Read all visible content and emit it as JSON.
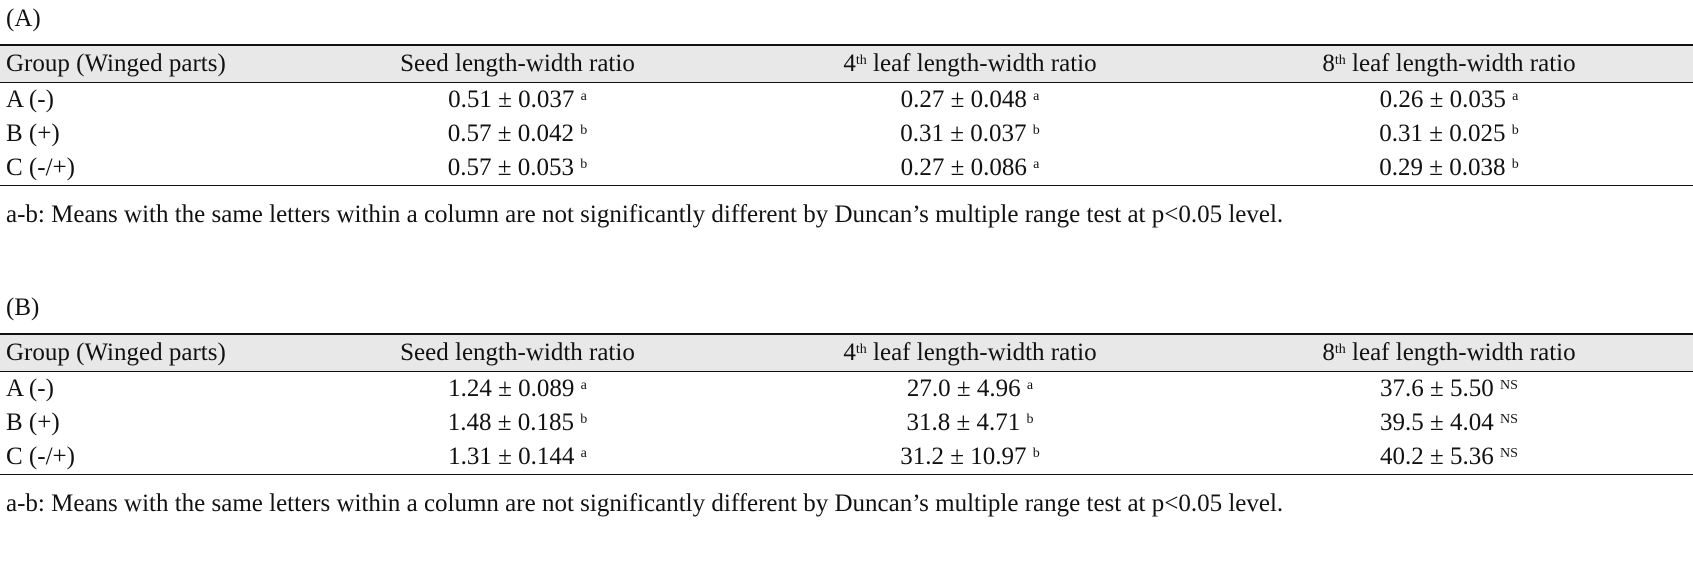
{
  "tables": [
    {
      "label": "(A)",
      "headers": [
        {
          "base": "Group (Winged parts)",
          "sup": "",
          "tail": ""
        },
        {
          "base": "Seed length-width ratio",
          "sup": "",
          "tail": ""
        },
        {
          "base": "4",
          "sup": "th",
          "tail": " leaf length-width ratio"
        },
        {
          "base": "8",
          "sup": "th",
          "tail": " leaf length-width ratio"
        }
      ],
      "rows": [
        {
          "group": "A (-)",
          "cells": [
            {
              "value": "0.51 ± 0.037",
              "sup": "a"
            },
            {
              "value": "0.27 ± 0.048",
              "sup": "a"
            },
            {
              "value": "0.26 ± 0.035",
              "sup": "a"
            }
          ]
        },
        {
          "group": "B (+)",
          "cells": [
            {
              "value": "0.57 ± 0.042",
              "sup": "b"
            },
            {
              "value": "0.31 ± 0.037",
              "sup": "b"
            },
            {
              "value": "0.31 ± 0.025",
              "sup": "b"
            }
          ]
        },
        {
          "group": "C (-/+)",
          "cells": [
            {
              "value": "0.57 ± 0.053",
              "sup": "b"
            },
            {
              "value": "0.27 ± 0.086",
              "sup": "a"
            },
            {
              "value": "0.29 ± 0.038",
              "sup": "b"
            }
          ]
        }
      ],
      "note": "a-b: Means with the same letters within a column are not significantly different by Duncan’s multiple range test at p<0.05 level."
    },
    {
      "label": "(B)",
      "headers": [
        {
          "base": "Group (Winged parts)",
          "sup": "",
          "tail": ""
        },
        {
          "base": "Seed length-width ratio",
          "sup": "",
          "tail": ""
        },
        {
          "base": "4",
          "sup": "th",
          "tail": " leaf length-width ratio"
        },
        {
          "base": "8",
          "sup": "th",
          "tail": " leaf length-width ratio"
        }
      ],
      "rows": [
        {
          "group": "A (-)",
          "cells": [
            {
              "value": "1.24 ± 0.089",
              "sup": "a"
            },
            {
              "value": "27.0 ± 4.96",
              "sup": "a"
            },
            {
              "value": "37.6 ± 5.50",
              "sup": "NS"
            }
          ]
        },
        {
          "group": "B (+)",
          "cells": [
            {
              "value": "1.48 ± 0.185",
              "sup": "b"
            },
            {
              "value": "31.8 ± 4.71",
              "sup": "b"
            },
            {
              "value": "39.5 ± 4.04",
              "sup": "NS"
            }
          ]
        },
        {
          "group": "C (-/+)",
          "cells": [
            {
              "value": "1.31 ± 0.144",
              "sup": "a"
            },
            {
              "value": "31.2 ± 10.97",
              "sup": "b"
            },
            {
              "value": "40.2 ± 5.36",
              "sup": "NS"
            }
          ]
        }
      ],
      "note": "a-b: Means with the same letters within a column are not significantly different by Duncan’s multiple range test at p<0.05 level."
    }
  ]
}
